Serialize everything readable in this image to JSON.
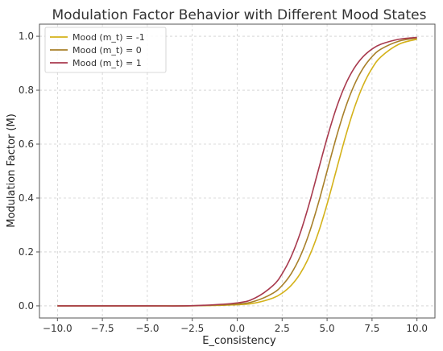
{
  "chart_data": {
    "type": "line",
    "title": "Modulation Factor Behavior with Different Mood States",
    "xlabel": "E_consistency",
    "ylabel": "Modulation Factor (M)",
    "xlim": [
      -11,
      11
    ],
    "ylim": [
      -0.045,
      1.045
    ],
    "xticks": [
      -10.0,
      -7.5,
      -5.0,
      -2.5,
      0.0,
      2.5,
      5.0,
      7.5,
      10.0
    ],
    "xtick_labels": [
      "−10.0",
      "−7.5",
      "−5.0",
      "−2.5",
      "0.0",
      "2.5",
      "5.0",
      "7.5",
      "10.0"
    ],
    "yticks": [
      0.0,
      0.2,
      0.4,
      0.6,
      0.8,
      1.0
    ],
    "ytick_labels": [
      "0.0",
      "0.2",
      "0.4",
      "0.6",
      "0.8",
      "1.0"
    ],
    "grid": true,
    "legend_position": "top-left",
    "x": [
      -10,
      -5,
      -2.5,
      0,
      1,
      2,
      2.5,
      3,
      3.5,
      4,
      4.5,
      5,
      5.5,
      6,
      6.5,
      7,
      7.5,
      8,
      9,
      10
    ],
    "series": [
      {
        "name": "Mood (m_t) = -1",
        "color": "#d4b21a",
        "values": [
          0.0,
          0.0,
          0.0003,
          0.004,
          0.0109,
          0.0293,
          0.0474,
          0.0759,
          0.1192,
          0.1824,
          0.2689,
          0.3775,
          0.5,
          0.6225,
          0.7311,
          0.8176,
          0.8808,
          0.9241,
          0.9707,
          0.989
        ]
      },
      {
        "name": "Mood (m_t) = 0",
        "color": "#a8802a",
        "values": [
          0.0,
          0.0,
          0.0004,
          0.0067,
          0.018,
          0.0474,
          0.0759,
          0.1192,
          0.1824,
          0.2689,
          0.3775,
          0.5,
          0.6225,
          0.7311,
          0.8176,
          0.8808,
          0.9241,
          0.9526,
          0.982,
          0.9933
        ]
      },
      {
        "name": "Mood (m_t) = 1",
        "color": "#a83a4e",
        "values": [
          0.0,
          0.0,
          0.0007,
          0.011,
          0.0293,
          0.0759,
          0.1192,
          0.1824,
          0.2689,
          0.3775,
          0.5,
          0.6225,
          0.7311,
          0.8176,
          0.8808,
          0.9241,
          0.9526,
          0.9707,
          0.989,
          0.9959
        ]
      }
    ]
  }
}
